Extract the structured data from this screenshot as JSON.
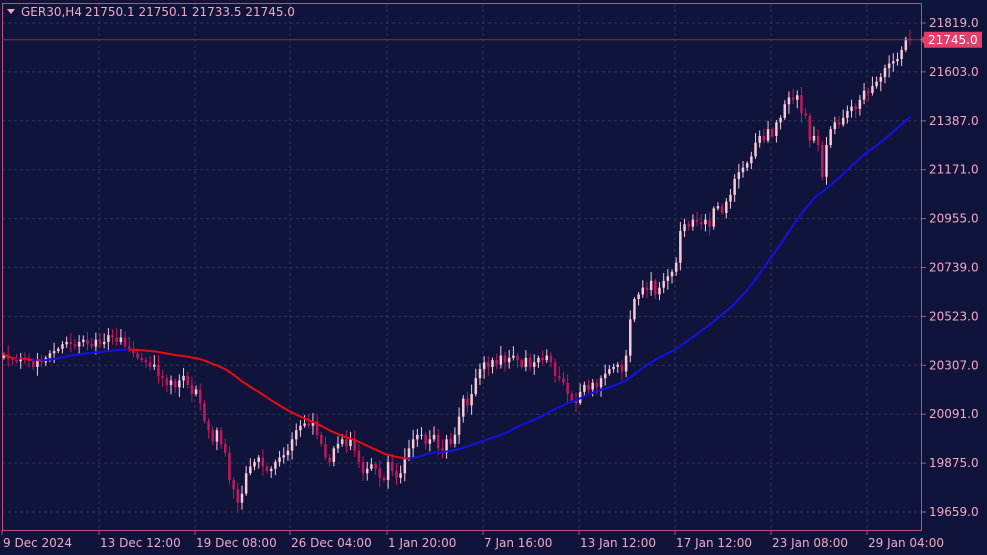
{
  "header": {
    "symbol": "GER30,H4",
    "ohlc": "21750.1 21750.1 21733.5 21745.0",
    "menu_icon": "triangle-down-icon"
  },
  "price_tag": "21745.0",
  "colors": {
    "background": "#10133a",
    "grid": "#2d3a5e",
    "axis": "#c0507a",
    "text": "#f2a9c4",
    "bull_candle": "#f7c9d8",
    "bear_candle": "#c2185b",
    "ma_up": "#1212e6",
    "ma_down": "#e60e0e",
    "price_tag_bg": "#e0406a",
    "price_tag_text": "#ffffff"
  },
  "chart_data": {
    "type": "candlestick",
    "x_ticks": [
      "9 Dec 2024",
      "13 Dec 12:00",
      "19 Dec 08:00",
      "26 Dec 04:00",
      "1 Jan 20:00",
      "7 Jan 16:00",
      "13 Jan 12:00",
      "17 Jan 12:00",
      "23 Jan 08:00",
      "29 Jan 04:00"
    ],
    "y_ticks": [
      21819.0,
      21603.0,
      21387.0,
      21171.0,
      20955.0,
      20739.0,
      20523.0,
      20307.0,
      20091.0,
      19875.0,
      19659.0
    ],
    "ylim": [
      19640,
      21840
    ],
    "last_price": 21745.0,
    "close": [
      20355,
      20335,
      20330,
      20325,
      20340,
      20330,
      20325,
      20300,
      20330,
      20320,
      20340,
      20360,
      20370,
      20380,
      20400,
      20410,
      20400,
      20390,
      20410,
      20420,
      20400,
      20390,
      20420,
      20400,
      20410,
      20440,
      20430,
      20410,
      20430,
      20390,
      20380,
      20360,
      20340,
      20330,
      20320,
      20300,
      20310,
      20260,
      20250,
      20220,
      20240,
      20210,
      20240,
      20260,
      20220,
      20180,
      20200,
      20140,
      20060,
      20020,
      19970,
      20020,
      19960,
      19920,
      19800,
      19760,
      19700,
      19740,
      19830,
      19860,
      19880,
      19900,
      19860,
      19840,
      19850,
      19880,
      19900,
      19910,
      19930,
      19980,
      20020,
      20040,
      20050,
      20040,
      20060,
      20000,
      19960,
      19900,
      19880,
      19940,
      19960,
      19980,
      19950,
      19980,
      19930,
      19880,
      19830,
      19850,
      19870,
      19850,
      19810,
      19800,
      19880,
      19840,
      19810,
      19830,
      19900,
      19940,
      19980,
      20000,
      20000,
      19960,
      19980,
      20000,
      19940,
      19920,
      19980,
      19960,
      20000,
      20080,
      20160,
      20130,
      20180,
      20250,
      20290,
      20320,
      20300,
      20330,
      20310,
      20350,
      20320,
      20340,
      20350,
      20330,
      20300,
      20340,
      20300,
      20320,
      20340,
      20330,
      20350,
      20320,
      20260,
      20250,
      20230,
      20180,
      20150,
      20140,
      20190,
      20220,
      20200,
      20230,
      20210,
      20250,
      20270,
      20290,
      20300,
      20310,
      20280,
      20350,
      20510,
      20600,
      20620,
      20650,
      20640,
      20680,
      20620,
      20650,
      20680,
      20700,
      20720,
      20760,
      20900,
      20930,
      20920,
      20950,
      20940,
      20930,
      20950,
      20920,
      21000,
      21010,
      20980,
      21030,
      21060,
      21130,
      21160,
      21180,
      21200,
      21230,
      21290,
      21320,
      21300,
      21350,
      21320,
      21380,
      21400,
      21460,
      21490,
      21480,
      21500,
      21420,
      21410,
      21300,
      21320,
      21280,
      21140,
      21280,
      21350,
      21380,
      21370,
      21400,
      21430,
      21450,
      21440,
      21480,
      21520,
      21510,
      21540,
      21560,
      21580,
      21620,
      21640,
      21650,
      21660,
      21700,
      21750,
      21745
    ]
  }
}
